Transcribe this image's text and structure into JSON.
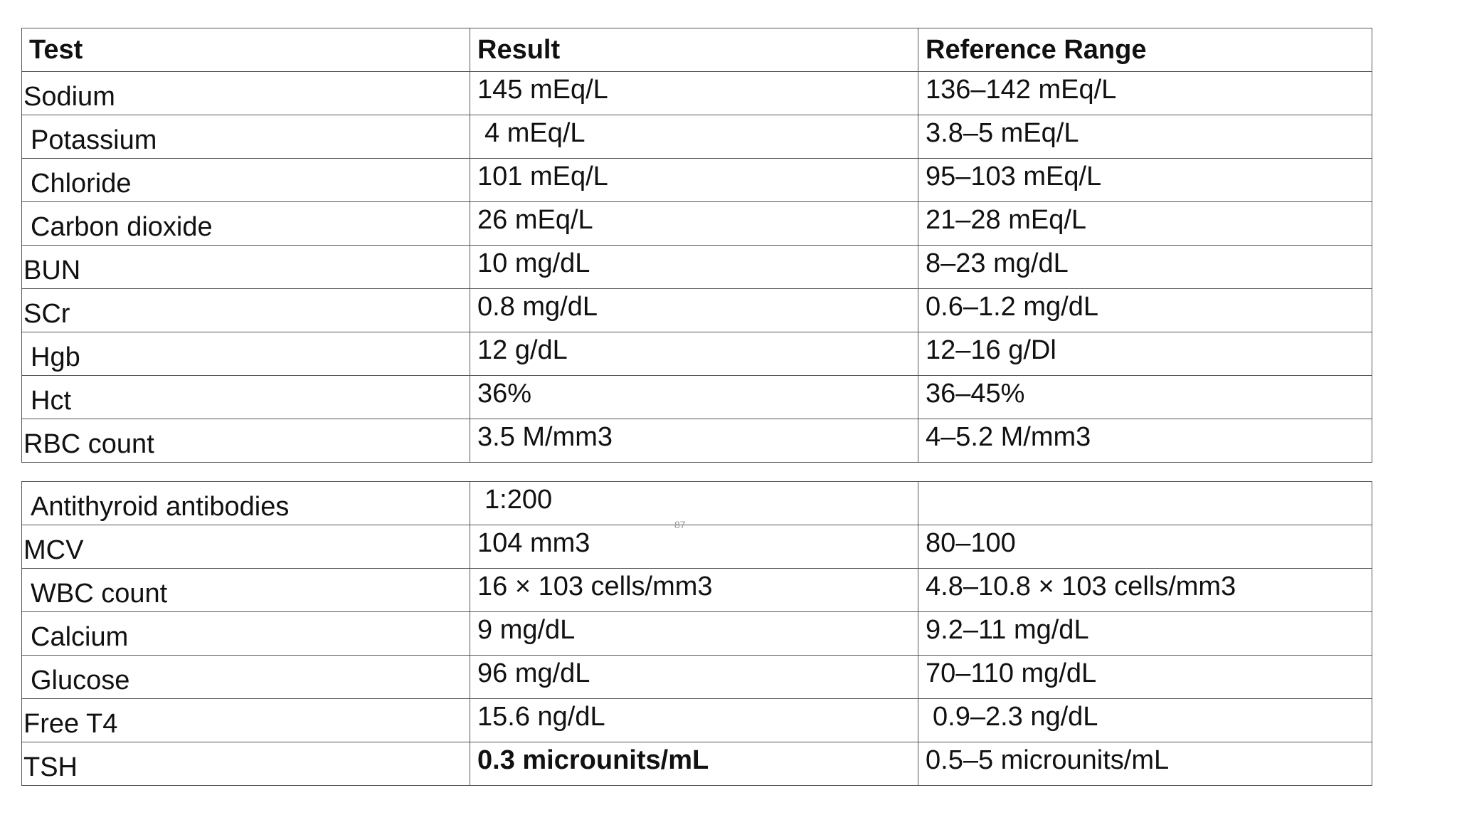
{
  "headers": {
    "test": "Test",
    "result": "Result",
    "reference": "Reference Range"
  },
  "rows": [
    {
      "test": "Sodium",
      "result": "145 mEq/L",
      "reference": "136–142 mEq/L"
    },
    {
      "test": "Potassium",
      "result": "4 mEq/L",
      "reference": "3.8–5 mEq/L"
    },
    {
      "test": "Chloride",
      "result": "101 mEq/L",
      "reference": "95–103 mEq/L"
    },
    {
      "test": "Carbon dioxide",
      "result": "26 mEq/L",
      "reference": "21–28 mEq/L"
    },
    {
      "test": "BUN",
      "result": "10 mg/dL",
      "reference": "8–23 mg/dL"
    },
    {
      "test": "SCr",
      "result": "0.8 mg/dL",
      "reference": "0.6–1.2 mg/dL"
    },
    {
      "test": "Hgb",
      "result": "12 g/dL",
      "reference": "12–16 g/Dl"
    },
    {
      "test": "Hct",
      "result": "36%",
      "reference": "36–45%"
    },
    {
      "test": "RBC count",
      "result": "3.5 M/mm3",
      "reference": "4–5.2 M/mm3"
    },
    {
      "test": "Antithyroid antibodies",
      "result": "1:200",
      "reference": ""
    },
    {
      "test": "MCV",
      "result": "104 mm3",
      "reference": "80–100"
    },
    {
      "test": "WBC count",
      "result": "16 × 103 cells/mm3",
      "reference": "4.8–10.8 × 103 cells/mm3"
    },
    {
      "test": "Calcium",
      "result": "9 mg/dL",
      "reference": "9.2–11 mg/dL"
    },
    {
      "test": "Glucose",
      "result": "96 mg/dL",
      "reference": "70–110 mg/dL"
    },
    {
      "test": "Free T4",
      "result": "15.6 ng/dL",
      "reference": "0.9–2.3 ng/dL"
    },
    {
      "test": "TSH",
      "result": "0.3 microunits/mL",
      "reference": "0.5–5 microunits/mL"
    }
  ],
  "page_number": "87"
}
